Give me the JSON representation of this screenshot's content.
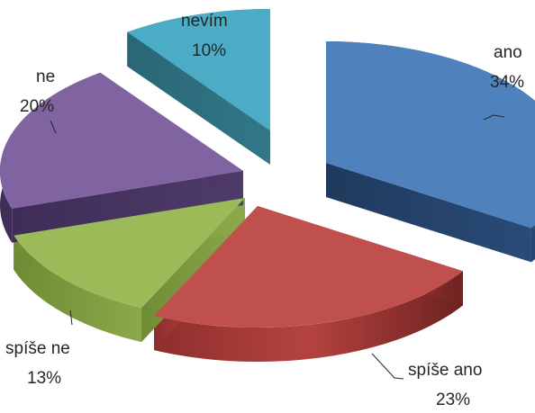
{
  "chart_data": {
    "type": "pie",
    "title": "",
    "slices": [
      {
        "label": "ano",
        "value": 34,
        "display": "34%",
        "color": "#4F81BD"
      },
      {
        "label": "spíše ano",
        "value": 23,
        "display": "23%",
        "color": "#C0504D"
      },
      {
        "label": "spíše ne",
        "value": 13,
        "display": "13%",
        "color": "#9BBB59"
      },
      {
        "label": "ne",
        "value": 20,
        "display": "20%",
        "color": "#8064A2"
      },
      {
        "label": "nevím",
        "value": 10,
        "display": "10%",
        "color": "#4BACC6"
      }
    ],
    "exploded": true,
    "three_d": true,
    "legend": "none"
  }
}
